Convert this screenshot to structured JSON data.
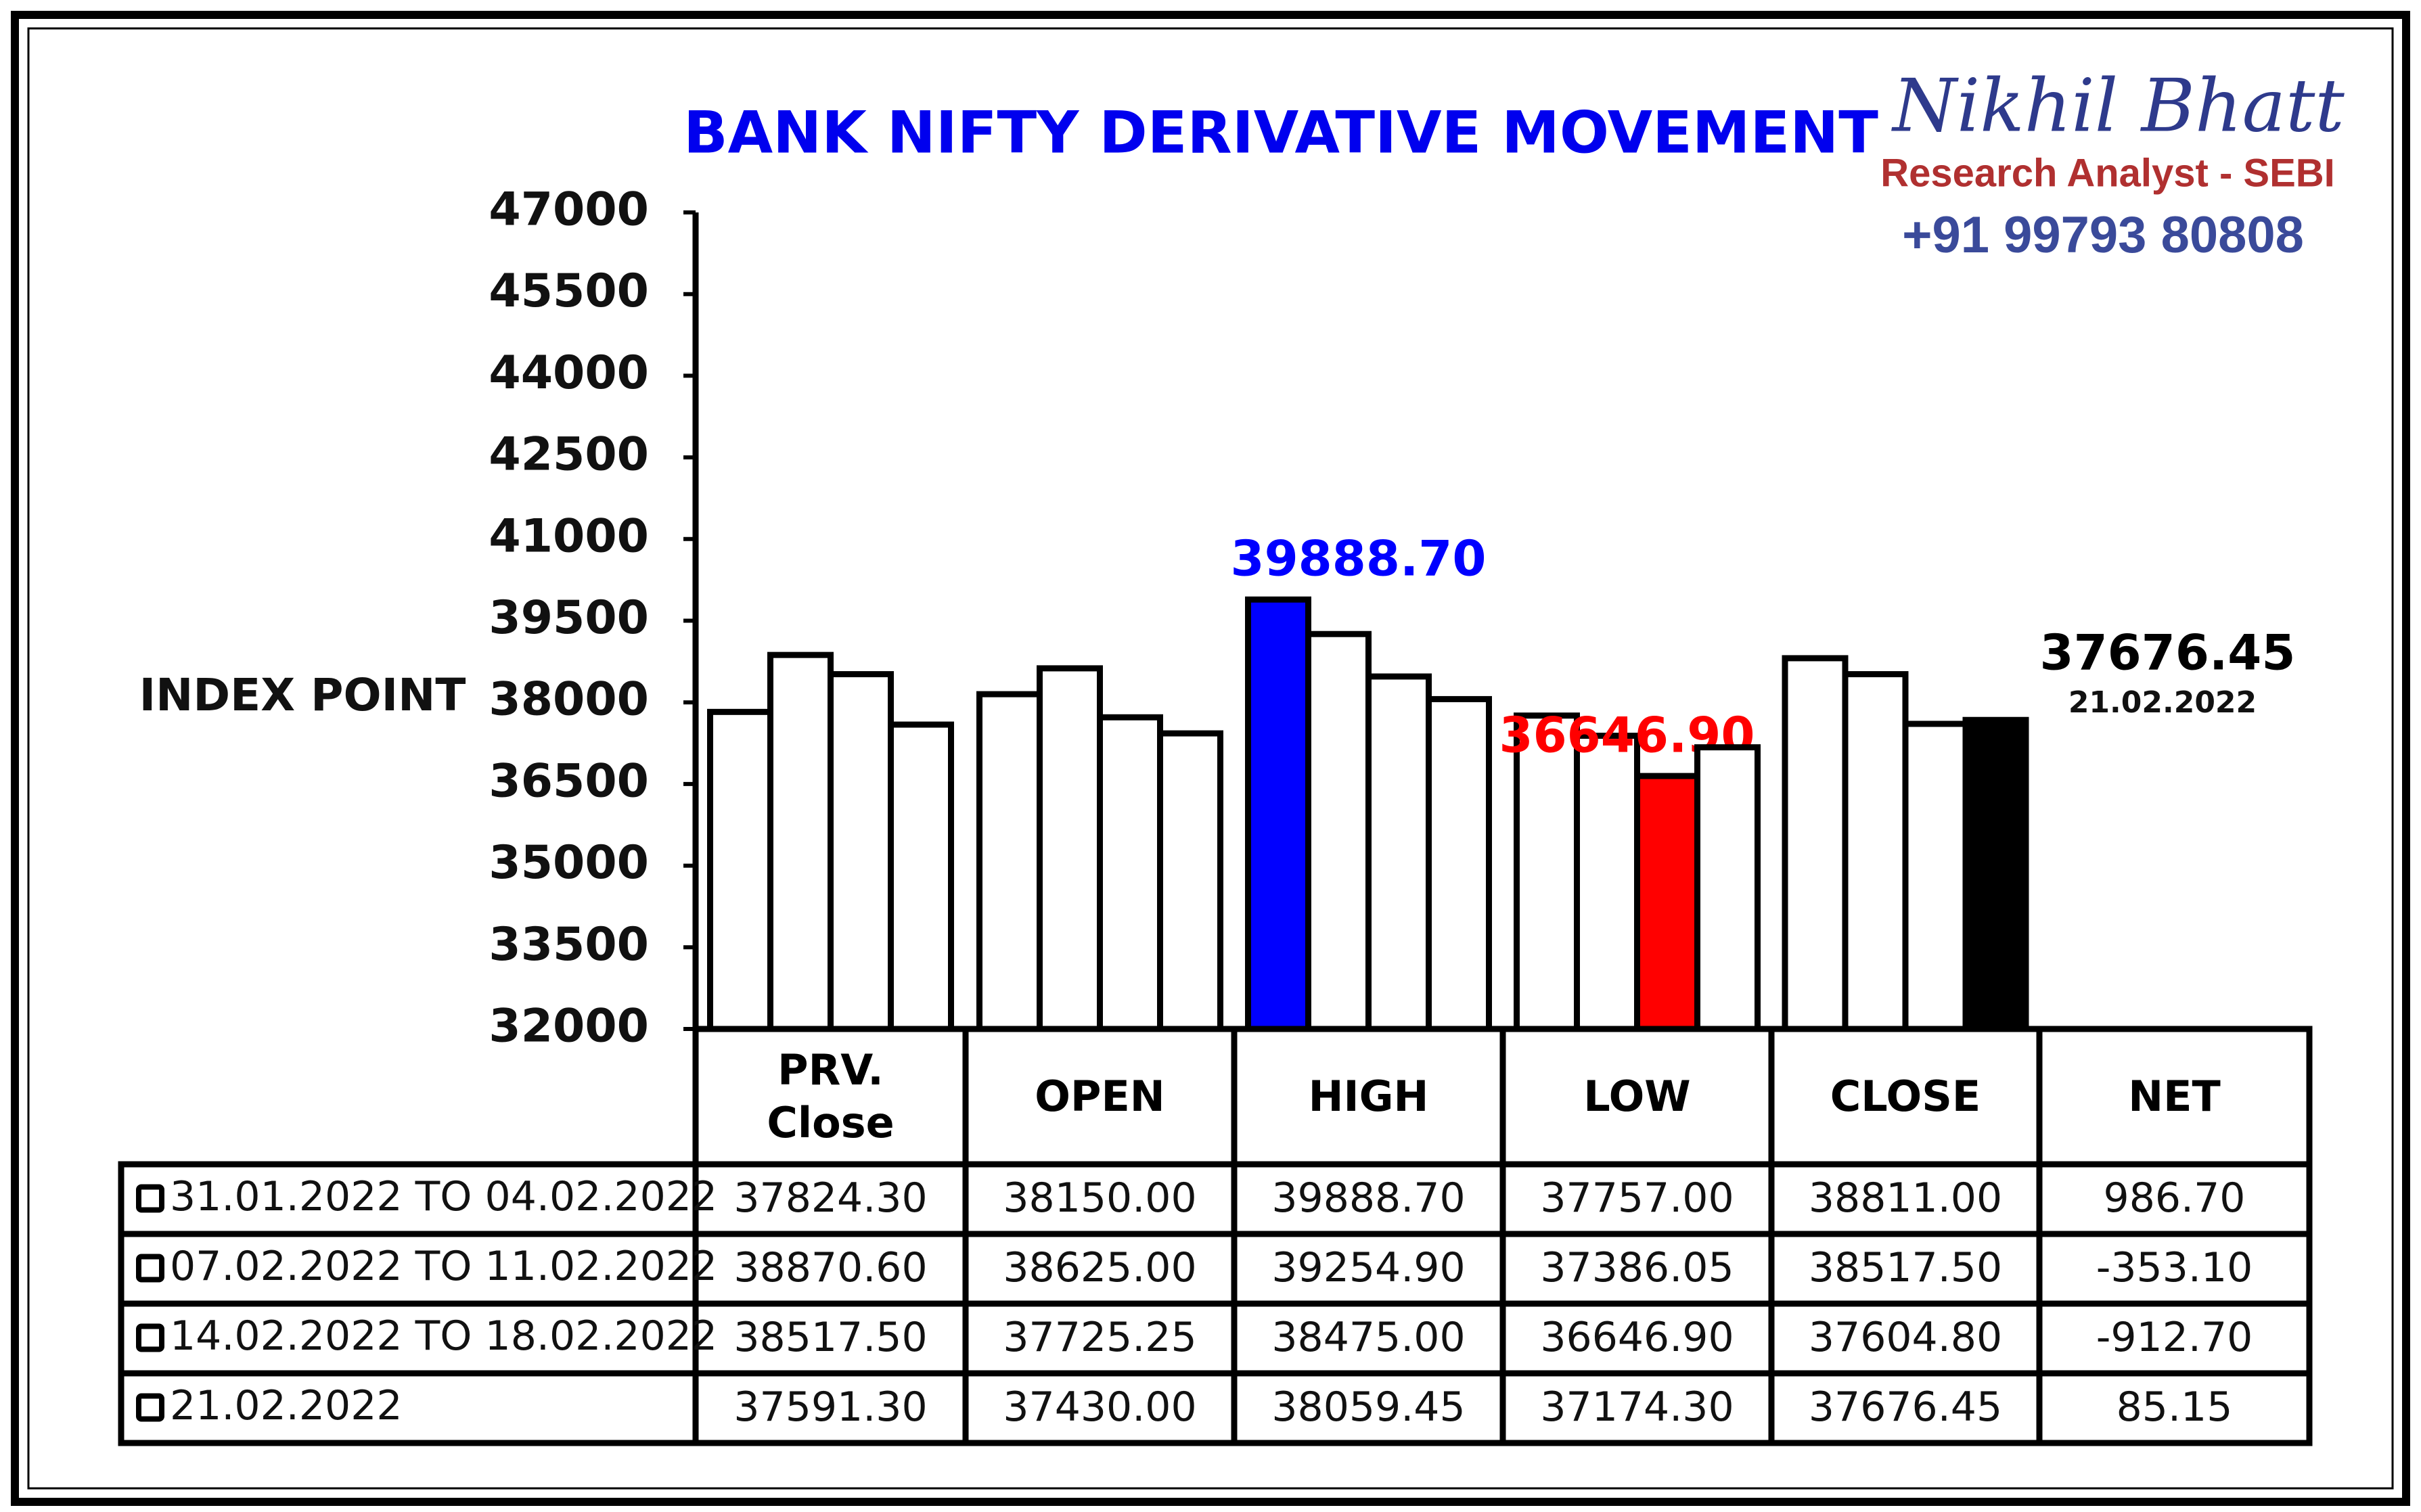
{
  "chart_data": {
    "type": "bar",
    "title": "BANK NIFTY DERIVATIVE MOVEMENT",
    "y_label": "INDEX POINT",
    "brand": {
      "name": "Nikhil Bhatt",
      "role": "Research Analyst - SEBI",
      "phone": "+91 99793 80808"
    },
    "categories": [
      "PRV. Close",
      "OPEN",
      "HIGH",
      "LOW",
      "CLOSE"
    ],
    "net_header": "NET",
    "ylim": [
      32000,
      47000
    ],
    "yticks": [
      32000,
      33500,
      35000,
      36500,
      38000,
      39500,
      41000,
      42500,
      44000,
      45500,
      47000
    ],
    "series": [
      {
        "name": "31.01.2022 TO 04.02.2022",
        "values": [
          37824.3,
          38150,
          39888.7,
          37757,
          38811
        ],
        "value_labels": [
          "37824.30",
          "38150.00",
          "39888.70",
          "37757.00",
          "38811.00"
        ],
        "colors": [
          "#ffffff",
          "#ffffff",
          "#0000ff",
          "#ffffff",
          "#ffffff"
        ],
        "label_colors": [
          null,
          null,
          "#0000ff",
          null,
          null
        ],
        "net": 986.7,
        "net_label": "986.70"
      },
      {
        "name": "07.02.2022 TO 11.02.2022",
        "values": [
          38870.6,
          38625,
          39254.9,
          37386.05,
          38517.5
        ],
        "value_labels": [
          "38870.60",
          "38625.00",
          "39254.90",
          "37386.05",
          "38517.50"
        ],
        "colors": [
          "#ffffff",
          "#ffffff",
          "#ffffff",
          "#ffffff",
          "#ffffff"
        ],
        "label_colors": [
          null,
          null,
          null,
          null,
          null
        ],
        "net": -353.1,
        "net_label": "-353.10"
      },
      {
        "name": "14.02.2022 TO 18.02.2022",
        "values": [
          38517.5,
          37725.25,
          38475,
          36646.9,
          37604.8
        ],
        "value_labels": [
          "38517.50",
          "37725.25",
          "38475.00",
          "36646.90",
          "37604.80"
        ],
        "colors": [
          "#ffffff",
          "#ffffff",
          "#ffffff",
          "#ff0000",
          "#ffffff"
        ],
        "label_colors": [
          null,
          null,
          null,
          "#ff0000",
          null
        ],
        "net": -912.7,
        "net_label": "-912.70"
      },
      {
        "name": "21.02.2022",
        "values": [
          37591.3,
          37430,
          38059.45,
          37174.3,
          37676.45
        ],
        "value_labels": [
          "37591.30",
          "37430.00",
          "38059.45",
          "37174.30",
          "37676.45"
        ],
        "colors": [
          "#ffffff",
          "#ffffff",
          "#ffffff",
          "#ffffff",
          "#000000"
        ],
        "label_colors": [
          null,
          null,
          null,
          null,
          "#000000"
        ],
        "net": 85.15,
        "net_label": "85.15"
      }
    ]
  }
}
